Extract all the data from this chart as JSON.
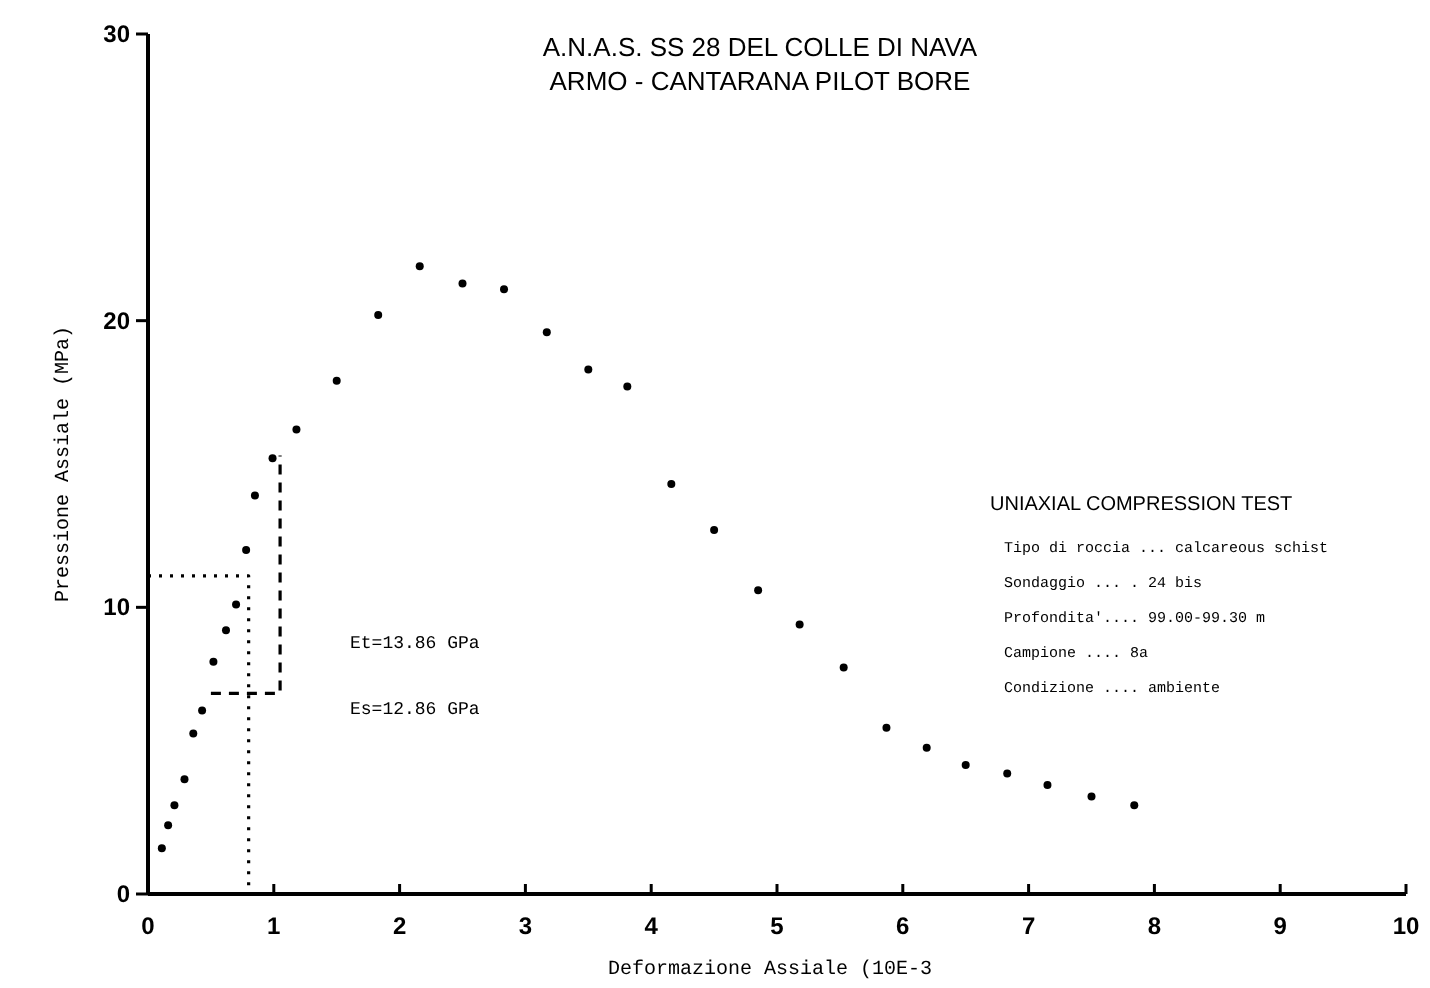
{
  "chart_data": {
    "type": "scatter",
    "title": "A.N.A.S.    SS 28 DEL COLLE DI NAVA",
    "subtitle": "ARMO - CANTARANA PILOT BORE",
    "xlabel": "Deformazione Assiale  (10E-3",
    "ylabel": "Pressione Assiale   (MPa)",
    "xlim": [
      0,
      10
    ],
    "ylim": [
      0,
      30
    ],
    "xticks": [
      0,
      1,
      2,
      3,
      4,
      5,
      6,
      7,
      8,
      9,
      10
    ],
    "yticks": [
      0,
      10,
      20,
      30
    ],
    "grid": false,
    "marker": "circle",
    "series": [
      {
        "color": "#000000",
        "x": [
          0.11,
          0.16,
          0.21,
          0.29,
          0.36,
          0.43,
          0.52,
          0.62,
          0.7,
          0.78,
          0.85,
          0.99,
          1.18,
          1.5,
          1.83,
          2.16,
          2.5,
          2.83,
          3.17,
          3.5,
          3.81,
          4.16,
          4.5,
          4.85,
          5.18,
          5.53,
          5.87,
          6.19,
          6.5,
          6.83,
          7.15,
          7.5,
          7.84
        ],
        "values": [
          1.6,
          2.4,
          3.1,
          4.0,
          5.6,
          6.4,
          8.1,
          9.2,
          10.1,
          12.0,
          13.9,
          15.2,
          16.2,
          17.9,
          20.2,
          21.9,
          21.3,
          21.1,
          19.6,
          18.3,
          17.7,
          14.3,
          12.7,
          10.6,
          9.4,
          7.9,
          5.8,
          5.1,
          4.5,
          4.2,
          3.8,
          3.4,
          3.1
        ]
      },
      {
        "type": "line",
        "color": "#000000",
        "marker": "none",
        "line_style": "dotted",
        "x": [
          0,
          0.8,
          0.8
        ],
        "values": [
          11.1,
          11.1,
          0
        ]
      },
      {
        "type": "line",
        "color": "#000000",
        "marker": "none",
        "line_style": "dashed",
        "x": [
          0.5,
          1.05,
          1.05
        ],
        "values": [
          7,
          7,
          15.3
        ]
      }
    ],
    "annotations": [
      "Et=13.86 GPa",
      "Es=12.86 GPa",
      "UNIAXIAL COMPRESSION TEST",
      "Tipo di roccia ...  calcareous schist",
      "Sondaggio     ... . 24 bis",
      "Profondita'.... 99.00-99.30 m",
      "Campione .... 8a",
      "Condizione .... ambiente"
    ]
  }
}
